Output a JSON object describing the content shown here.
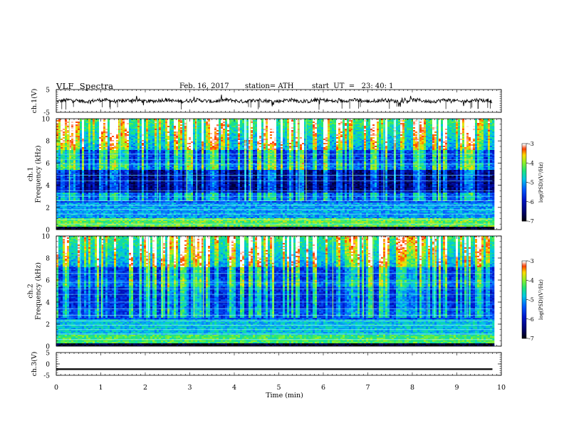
{
  "header": {
    "title": "VLF  Spectra",
    "date": "Feb. 16, 2017",
    "station": "station= ATH",
    "start": "start  UT  =   23: 40: 1"
  },
  "chart_data": [
    {
      "type": "line",
      "panel": "ch1-waveform",
      "ylabel": "ch.1(V)",
      "ylim": [
        -5,
        5
      ],
      "yticks": [
        "5",
        "-5"
      ],
      "xlim": [
        0,
        10
      ],
      "x_end": 9.8,
      "baseline": 0.1,
      "color": "#000000"
    },
    {
      "type": "heatmap",
      "panel": "ch1-spectrogram",
      "ylabel": "ch.1\nFrequency  (kHz)",
      "ylim": [
        0,
        10
      ],
      "yticks": [
        "0",
        "2",
        "4",
        "6",
        "8",
        "10"
      ],
      "xlim": [
        0,
        10
      ],
      "x_end": 9.8,
      "colorbar": {
        "label": "log(PSD)(V²/Hz)",
        "range": [
          -7,
          -3
        ],
        "ticks": [
          "-3",
          "-4",
          "-5",
          "-6",
          "-7"
        ]
      }
    },
    {
      "type": "heatmap",
      "panel": "ch2-spectrogram",
      "ylabel": "ch.2\nFrequency  (kHz)",
      "ylim": [
        0,
        10
      ],
      "yticks": [
        "0",
        "2",
        "4",
        "6",
        "8",
        "10"
      ],
      "xlim": [
        0,
        10
      ],
      "x_end": 9.8,
      "colorbar": {
        "label": "log(PSD)(V²/Hz)",
        "range": [
          -7,
          -3
        ],
        "ticks": [
          "-3",
          "-4",
          "-5",
          "-6",
          "-7"
        ]
      }
    },
    {
      "type": "line",
      "panel": "ch3-waveform",
      "ylabel": "ch.3(V)",
      "ylim": [
        -5,
        5
      ],
      "yticks": [
        "5",
        "0",
        "-5"
      ],
      "xlim": [
        0,
        10
      ],
      "x_end": 9.8,
      "baseline": -2.3,
      "color": "#000000"
    }
  ],
  "xaxis": {
    "label": "Time  (min)",
    "ticks": [
      "0",
      "1",
      "2",
      "3",
      "4",
      "5",
      "6",
      "7",
      "8",
      "9",
      "10"
    ]
  }
}
